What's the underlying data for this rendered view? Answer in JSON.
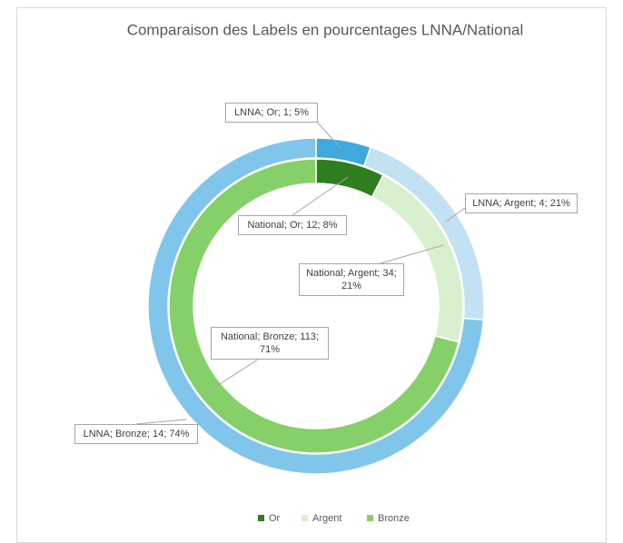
{
  "chart_data": {
    "type": "doughnut",
    "title": "Comparaison des Labels en pourcentages LNNA/National",
    "categories": [
      "Or",
      "Argent",
      "Bronze"
    ],
    "legend_colors": [
      "#2e7d1f",
      "#d9f0cf",
      "#86d06a"
    ],
    "series": [
      {
        "name": "LNNA",
        "values": [
          1,
          4,
          14
        ],
        "colors": [
          "#3ea9dc",
          "#c2e2f4",
          "#80c6ea"
        ],
        "value_labels": [
          "LNNA; Or; 1; 5%",
          "LNNA; Argent; 4; 21%",
          "LNNA; Bronze; 14; 74%"
        ]
      },
      {
        "name": "National",
        "values": [
          12,
          34,
          113
        ],
        "colors": [
          "#2e7d1f",
          "#d9f0cf",
          "#86d06a"
        ],
        "value_labels": [
          "National; Or; 12; 8%",
          "National; Argent; 34; 21%",
          "National; Bronze; 113; 71%"
        ]
      }
    ],
    "legend": "bottom"
  }
}
